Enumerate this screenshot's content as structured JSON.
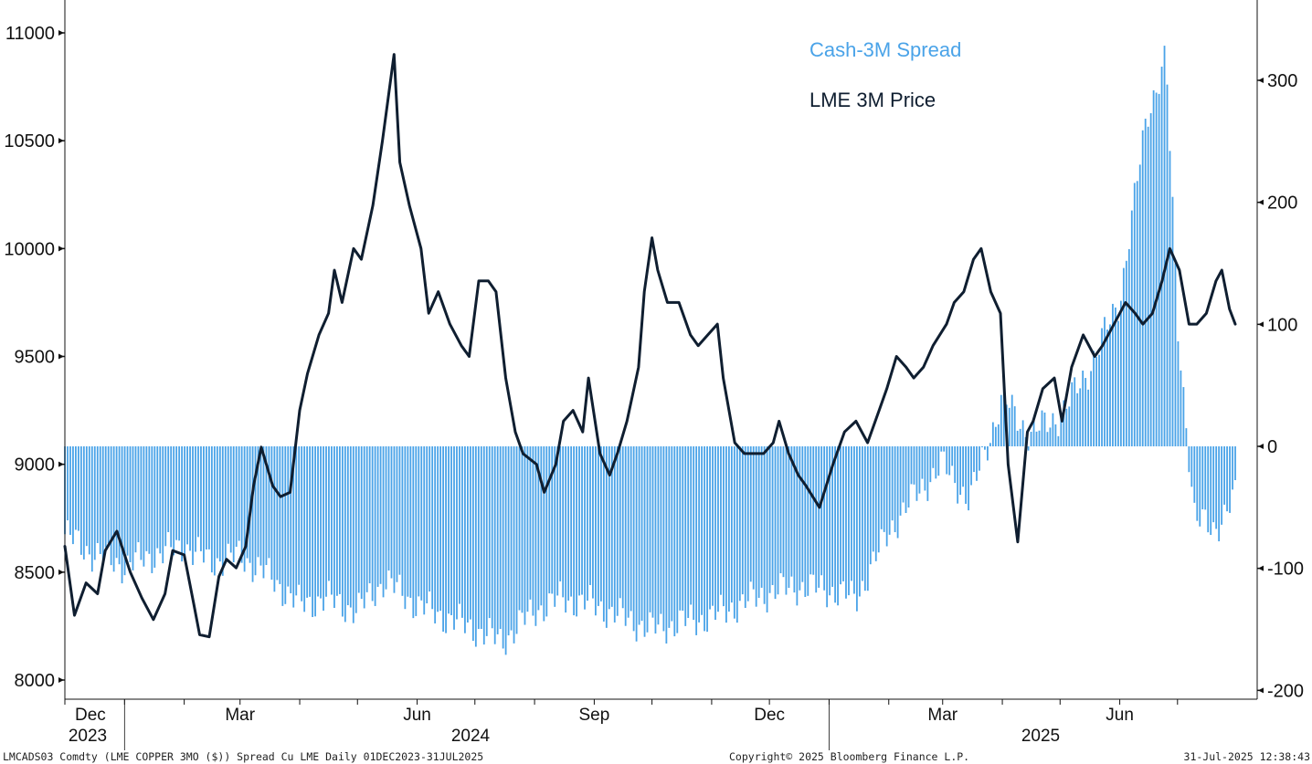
{
  "colors": {
    "spread": "#4aa3e8",
    "price": "#0f1e30",
    "axis": "#111111"
  },
  "footer": {
    "left": "LMCADS03 Comdty (LME COPPER    3MO ($)) Spread Cu LME  Daily 01DEC2023-31JUL2025",
    "center": "Copyright© 2025 Bloomberg Finance L.P.",
    "right": "31-Jul-2025 12:38:43"
  },
  "chart_data": {
    "type": "bar+line",
    "title": "",
    "legend": [
      {
        "name": "Cash-3M Spread",
        "color": "#4aa3e8"
      },
      {
        "name": "LME 3M Price",
        "color": "#0f1e30"
      }
    ],
    "legend_position": "top-right",
    "grid": false,
    "x_range": [
      "2023-12-01",
      "2025-07-31"
    ],
    "x_month_labels": [
      "Dec",
      "Mar",
      "Jun",
      "Sep",
      "Dec",
      "Mar",
      "Jun"
    ],
    "x_year_labels": [
      "2023",
      "2024",
      "2025"
    ],
    "y_left": {
      "label": "",
      "ylim": [
        7900,
        11150
      ],
      "ticks": [
        "8000",
        "8500",
        "9000",
        "9500",
        "10000",
        "10500",
        "11000"
      ]
    },
    "y_right": {
      "label": "",
      "ylim": [
        -210,
        365
      ],
      "ticks": [
        "-200",
        "-100",
        "0",
        "100",
        "200",
        "300"
      ]
    },
    "series": [
      {
        "name": "Cash-3M Spread",
        "axis": "right",
        "kind": "bar",
        "points": [
          [
            "2023-12-01",
            -72
          ],
          [
            "2023-12-15",
            -88
          ],
          [
            "2024-01-01",
            -98
          ],
          [
            "2024-01-15",
            -90
          ],
          [
            "2024-02-01",
            -82
          ],
          [
            "2024-02-15",
            -95
          ],
          [
            "2024-03-01",
            -90
          ],
          [
            "2024-03-15",
            -105
          ],
          [
            "2024-04-01",
            -130
          ],
          [
            "2024-04-15",
            -125
          ],
          [
            "2024-05-01",
            -135
          ],
          [
            "2024-05-15",
            -110
          ],
          [
            "2024-06-01",
            -130
          ],
          [
            "2024-06-15",
            -140
          ],
          [
            "2024-07-01",
            -150
          ],
          [
            "2024-07-15",
            -160
          ],
          [
            "2024-08-01",
            -135
          ],
          [
            "2024-08-15",
            -125
          ],
          [
            "2024-09-01",
            -130
          ],
          [
            "2024-09-15",
            -140
          ],
          [
            "2024-10-01",
            -150
          ],
          [
            "2024-10-15",
            -145
          ],
          [
            "2024-11-01",
            -140
          ],
          [
            "2024-11-15",
            -130
          ],
          [
            "2024-12-01",
            -120
          ],
          [
            "2024-12-15",
            -115
          ],
          [
            "2025-01-01",
            -118
          ],
          [
            "2025-01-15",
            -125
          ],
          [
            "2025-02-01",
            -70
          ],
          [
            "2025-02-15",
            -40
          ],
          [
            "2025-03-01",
            -15
          ],
          [
            "2025-03-15",
            -45
          ],
          [
            "2025-04-01",
            40
          ],
          [
            "2025-04-15",
            10
          ],
          [
            "2025-05-01",
            25
          ],
          [
            "2025-05-15",
            60
          ],
          [
            "2025-06-01",
            120
          ],
          [
            "2025-06-15",
            270
          ],
          [
            "2025-06-25",
            320
          ],
          [
            "2025-07-01",
            100
          ],
          [
            "2025-07-10",
            -60
          ],
          [
            "2025-07-20",
            -68
          ],
          [
            "2025-07-31",
            -42
          ]
        ]
      },
      {
        "name": "LME 3M Price",
        "axis": "left",
        "kind": "line",
        "points": [
          [
            "2023-12-01",
            8620
          ],
          [
            "2023-12-06",
            8300
          ],
          [
            "2023-12-12",
            8450
          ],
          [
            "2023-12-18",
            8400
          ],
          [
            "2023-12-22",
            8600
          ],
          [
            "2023-12-28",
            8690
          ],
          [
            "2024-01-04",
            8500
          ],
          [
            "2024-01-10",
            8380
          ],
          [
            "2024-01-16",
            8280
          ],
          [
            "2024-01-22",
            8400
          ],
          [
            "2024-01-26",
            8600
          ],
          [
            "2024-02-01",
            8580
          ],
          [
            "2024-02-06",
            8350
          ],
          [
            "2024-02-09",
            8210
          ],
          [
            "2024-02-14",
            8200
          ],
          [
            "2024-02-19",
            8480
          ],
          [
            "2024-02-23",
            8560
          ],
          [
            "2024-02-28",
            8520
          ],
          [
            "2024-03-04",
            8620
          ],
          [
            "2024-03-08",
            8900
          ],
          [
            "2024-03-12",
            9080
          ],
          [
            "2024-03-18",
            8900
          ],
          [
            "2024-03-22",
            8850
          ],
          [
            "2024-03-27",
            8870
          ],
          [
            "2024-04-01",
            9250
          ],
          [
            "2024-04-05",
            9420
          ],
          [
            "2024-04-11",
            9600
          ],
          [
            "2024-04-16",
            9700
          ],
          [
            "2024-04-19",
            9900
          ],
          [
            "2024-04-23",
            9750
          ],
          [
            "2024-04-29",
            10000
          ],
          [
            "2024-05-03",
            9950
          ],
          [
            "2024-05-09",
            10200
          ],
          [
            "2024-05-14",
            10500
          ],
          [
            "2024-05-20",
            10900
          ],
          [
            "2024-05-23",
            10400
          ],
          [
            "2024-05-28",
            10200
          ],
          [
            "2024-06-03",
            10000
          ],
          [
            "2024-06-07",
            9700
          ],
          [
            "2024-06-12",
            9800
          ],
          [
            "2024-06-18",
            9650
          ],
          [
            "2024-06-24",
            9550
          ],
          [
            "2024-06-28",
            9500
          ],
          [
            "2024-07-03",
            9850
          ],
          [
            "2024-07-08",
            9850
          ],
          [
            "2024-07-12",
            9800
          ],
          [
            "2024-07-17",
            9400
          ],
          [
            "2024-07-22",
            9150
          ],
          [
            "2024-07-26",
            9050
          ],
          [
            "2024-08-02",
            9000
          ],
          [
            "2024-08-06",
            8870
          ],
          [
            "2024-08-12",
            9000
          ],
          [
            "2024-08-16",
            9200
          ],
          [
            "2024-08-21",
            9250
          ],
          [
            "2024-08-26",
            9150
          ],
          [
            "2024-08-29",
            9400
          ],
          [
            "2024-09-04",
            9050
          ],
          [
            "2024-09-09",
            8950
          ],
          [
            "2024-09-13",
            9050
          ],
          [
            "2024-09-18",
            9200
          ],
          [
            "2024-09-24",
            9450
          ],
          [
            "2024-09-27",
            9800
          ],
          [
            "2024-10-01",
            10050
          ],
          [
            "2024-10-04",
            9900
          ],
          [
            "2024-10-09",
            9750
          ],
          [
            "2024-10-15",
            9750
          ],
          [
            "2024-10-21",
            9600
          ],
          [
            "2024-10-25",
            9550
          ],
          [
            "2024-10-30",
            9600
          ],
          [
            "2024-11-04",
            9650
          ],
          [
            "2024-11-07",
            9400
          ],
          [
            "2024-11-13",
            9100
          ],
          [
            "2024-11-18",
            9050
          ],
          [
            "2024-11-22",
            9050
          ],
          [
            "2024-11-28",
            9050
          ],
          [
            "2024-12-03",
            9100
          ],
          [
            "2024-12-06",
            9200
          ],
          [
            "2024-12-11",
            9050
          ],
          [
            "2024-12-16",
            8950
          ],
          [
            "2024-12-20",
            8900
          ],
          [
            "2024-12-27",
            8800
          ],
          [
            "2025-01-03",
            9000
          ],
          [
            "2025-01-09",
            9150
          ],
          [
            "2025-01-15",
            9200
          ],
          [
            "2025-01-21",
            9100
          ],
          [
            "2025-01-27",
            9250
          ],
          [
            "2025-01-31",
            9350
          ],
          [
            "2025-02-05",
            9500
          ],
          [
            "2025-02-10",
            9450
          ],
          [
            "2025-02-14",
            9400
          ],
          [
            "2025-02-19",
            9450
          ],
          [
            "2025-02-24",
            9550
          ],
          [
            "2025-03-03",
            9650
          ],
          [
            "2025-03-07",
            9750
          ],
          [
            "2025-03-12",
            9800
          ],
          [
            "2025-03-17",
            9950
          ],
          [
            "2025-03-21",
            10000
          ],
          [
            "2025-03-26",
            9800
          ],
          [
            "2025-03-31",
            9700
          ],
          [
            "2025-04-04",
            9000
          ],
          [
            "2025-04-09",
            8640
          ],
          [
            "2025-04-14",
            9150
          ],
          [
            "2025-04-17",
            9200
          ],
          [
            "2025-04-22",
            9350
          ],
          [
            "2025-04-28",
            9400
          ],
          [
            "2025-05-02",
            9200
          ],
          [
            "2025-05-07",
            9450
          ],
          [
            "2025-05-13",
            9600
          ],
          [
            "2025-05-19",
            9500
          ],
          [
            "2025-05-23",
            9550
          ],
          [
            "2025-05-29",
            9650
          ],
          [
            "2025-06-04",
            9750
          ],
          [
            "2025-06-09",
            9700
          ],
          [
            "2025-06-13",
            9650
          ],
          [
            "2025-06-18",
            9700
          ],
          [
            "2025-06-23",
            9850
          ],
          [
            "2025-06-27",
            10000
          ],
          [
            "2025-07-02",
            9900
          ],
          [
            "2025-07-07",
            9650
          ],
          [
            "2025-07-11",
            9650
          ],
          [
            "2025-07-16",
            9700
          ],
          [
            "2025-07-21",
            9850
          ],
          [
            "2025-07-24",
            9900
          ],
          [
            "2025-07-28",
            9720
          ],
          [
            "2025-07-31",
            9650
          ]
        ]
      }
    ]
  }
}
